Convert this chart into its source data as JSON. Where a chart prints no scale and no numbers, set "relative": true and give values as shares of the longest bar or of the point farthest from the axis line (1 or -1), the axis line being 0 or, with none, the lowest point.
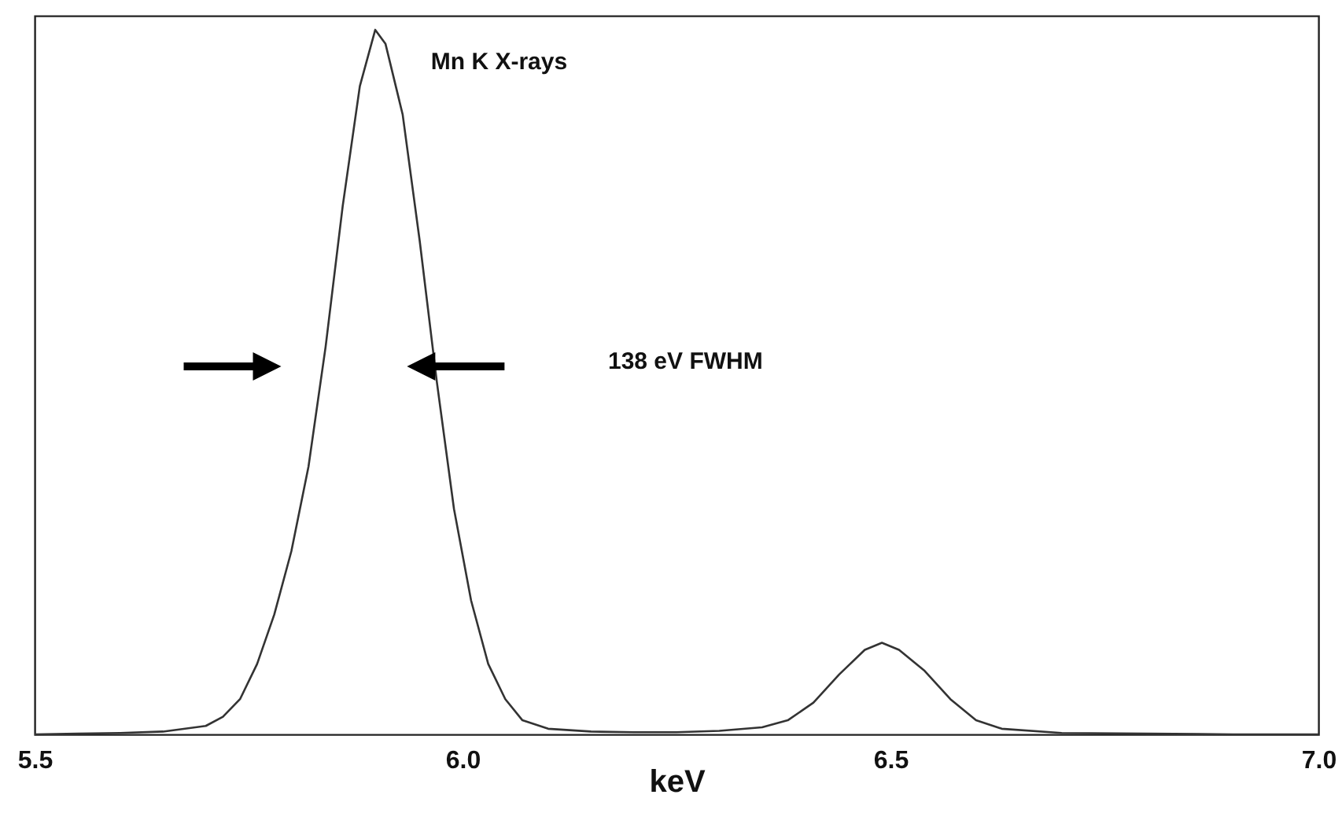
{
  "chart_data": {
    "type": "line",
    "relative": true,
    "xlabel": "keV",
    "xlim": [
      5.5,
      7.0
    ],
    "xticks": [
      5.5,
      {
        "value": 6,
        "label": "6.0"
      },
      6.5,
      {
        "value": 7,
        "label": "7.0"
      }
    ],
    "grid": false,
    "marker": "none",
    "line_style": "solid",
    "x": [
      5.5,
      5.55,
      5.6,
      5.65,
      5.7,
      5.72,
      5.74,
      5.76,
      5.78,
      5.8,
      5.82,
      5.84,
      5.86,
      5.88,
      5.898,
      5.91,
      5.93,
      5.95,
      5.97,
      5.99,
      6.01,
      6.03,
      6.05,
      6.07,
      6.1,
      6.15,
      6.2,
      6.25,
      6.3,
      6.35,
      6.38,
      6.41,
      6.44,
      6.47,
      6.49,
      6.51,
      6.54,
      6.57,
      6.6,
      6.63,
      6.7,
      6.8,
      6.9,
      7.0
    ],
    "series": [
      {
        "color": "#333333",
        "values": [
          0,
          0.001,
          0.002,
          0.004,
          0.012,
          0.025,
          0.05,
          0.1,
          0.17,
          0.26,
          0.38,
          0.55,
          0.75,
          0.92,
          1.0,
          0.98,
          0.88,
          0.7,
          0.5,
          0.32,
          0.19,
          0.1,
          0.05,
          0.02,
          0.008,
          0.004,
          0.003,
          0.003,
          0.005,
          0.01,
          0.02,
          0.045,
          0.085,
          0.12,
          0.13,
          0.12,
          0.09,
          0.05,
          0.02,
          0.008,
          0.002,
          0.001,
          0,
          0
        ]
      }
    ],
    "annotations": [
      "Mn K X-rays",
      "138 eV FWHM"
    ]
  }
}
